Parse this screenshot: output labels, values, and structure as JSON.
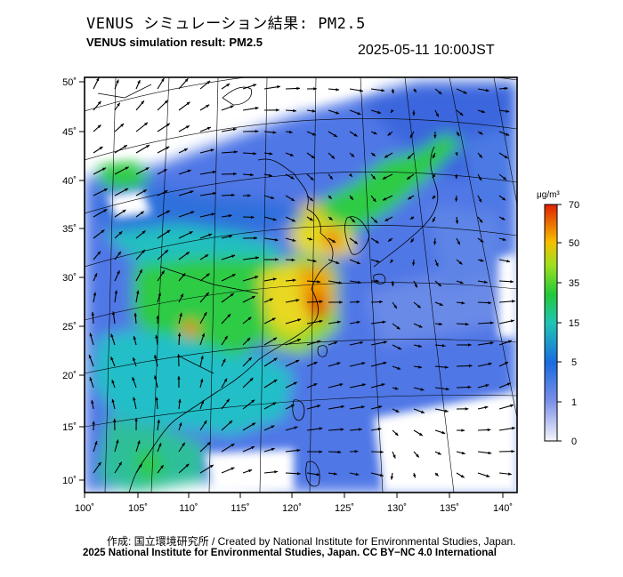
{
  "header": {
    "title_jp": "VENUS シミュレーション結果: PM2.5",
    "title_en": "VENUS simulation result: PM2.5",
    "timestamp": "2025-05-11 10:00JST"
  },
  "map": {
    "lon_ticks": [
      "100˚",
      "105˚",
      "110˚",
      "115˚",
      "120˚",
      "125˚",
      "130˚",
      "135˚",
      "140˚"
    ],
    "lat_ticks": [
      "50˚",
      "45˚",
      "40˚",
      "35˚",
      "30˚",
      "25˚",
      "20˚",
      "15˚",
      "10˚"
    ],
    "variable": "PM2.5",
    "overlay": "wind vectors"
  },
  "colorbar": {
    "unit": "μg/m³",
    "ticks": [
      "70",
      "50",
      "35",
      "15",
      "5",
      "1",
      "0"
    ],
    "colors": [
      "#f5f5fa",
      "#7a8fe8",
      "#1a6be0",
      "#1fc4b4",
      "#22c93a",
      "#e8e020",
      "#f5a000",
      "#e02000"
    ]
  },
  "footer": {
    "credit": "作成: 国立環境研究所 / Created by National Institute for Environmental Studies, Japan.",
    "copyright": "2025 National Institute for Environmental Studies, Japan. CC BY−NC 4.0 International"
  }
}
